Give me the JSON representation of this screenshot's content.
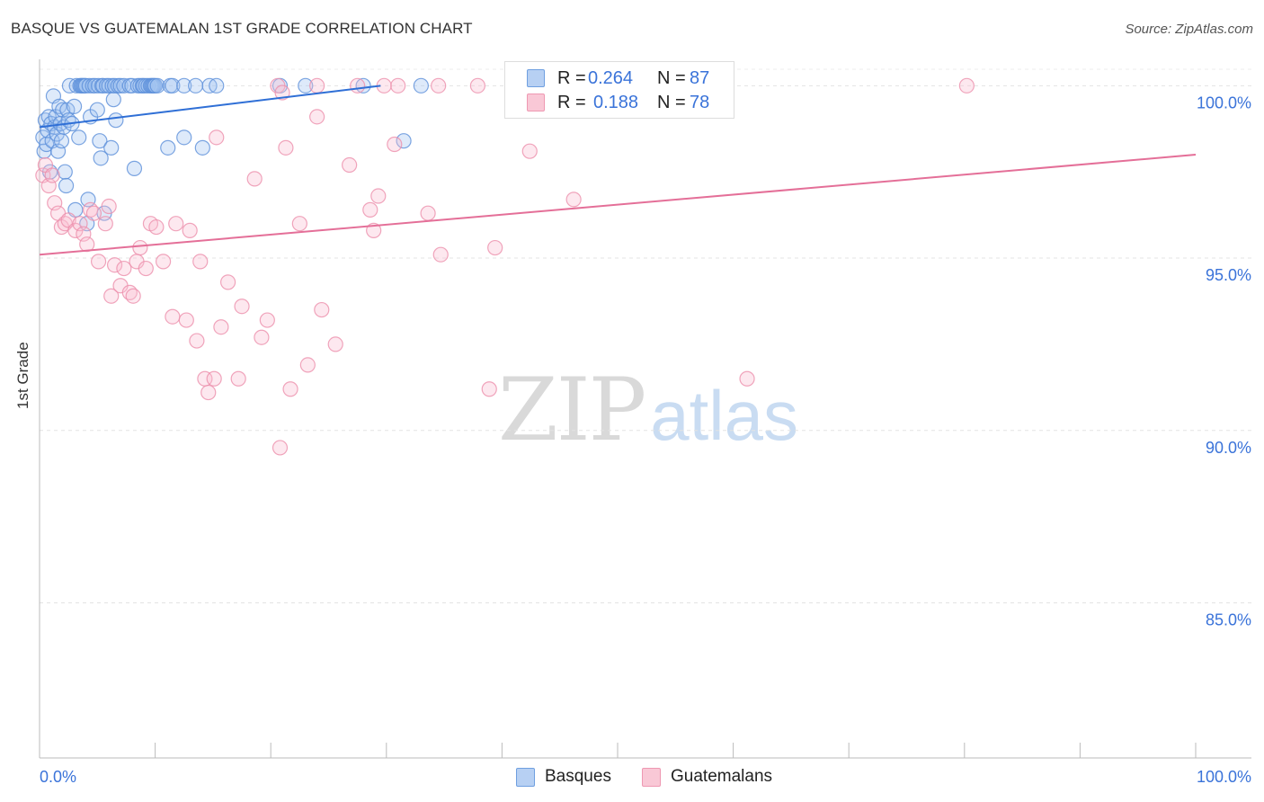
{
  "header": {
    "title": "BASQUE VS GUATEMALAN 1ST GRADE CORRELATION CHART",
    "source": "Source: ZipAtlas.com"
  },
  "watermark": {
    "zip": "ZIP",
    "atlas": "atlas"
  },
  "legend": {
    "rows": [
      {
        "r_label": "R =",
        "r_value": "0.264",
        "n_label": "N =",
        "n_value": "87",
        "fill": "#b7d0f3",
        "stroke": "#6f9fe0"
      },
      {
        "r_label": "R =",
        "r_value": "0.188",
        "n_label": "N =",
        "n_value": "78",
        "fill": "#f9c8d6",
        "stroke": "#ee98b2"
      }
    ]
  },
  "bottom_legend": {
    "series1": "Basques",
    "series2": "Guatemalans"
  },
  "colors": {
    "blue_point": "#5b8fd9",
    "blue_line": "#2f6fd6",
    "pink_point": "#ec8fab",
    "pink_line": "#e46f98",
    "tick_blue": "#3a73d9"
  },
  "chart_data": {
    "type": "scatter",
    "title": "BASQUE VS GUATEMALAN 1ST GRADE CORRELATION CHART",
    "ylabel": "1st Grade",
    "xlabel": "",
    "xlim": [
      0,
      100
    ],
    "ylim": [
      80.5,
      100.4
    ],
    "x_tick_labels": [
      "0.0%",
      "100.0%"
    ],
    "y_ticks": [
      {
        "value": 100,
        "label": "100.0%"
      },
      {
        "value": 95,
        "label": "95.0%"
      },
      {
        "value": 90,
        "label": "90.0%"
      },
      {
        "value": 85,
        "label": "85.0%"
      }
    ],
    "grid": true,
    "legend_position": "top-center",
    "series": [
      {
        "name": "Basques",
        "color": "#5b8fd9",
        "trend": {
          "x": [
            0,
            29.5
          ],
          "y": [
            98.8,
            100.0
          ]
        },
        "points": [
          [
            0.3,
            98.5
          ],
          [
            0.4,
            98.1
          ],
          [
            0.5,
            99.0
          ],
          [
            0.6,
            98.3
          ],
          [
            0.7,
            98.7
          ],
          [
            0.8,
            99.1
          ],
          [
            0.9,
            97.5
          ],
          [
            1.0,
            98.9
          ],
          [
            1.1,
            98.4
          ],
          [
            1.2,
            99.7
          ],
          [
            1.3,
            98.8
          ],
          [
            1.4,
            99.1
          ],
          [
            1.5,
            98.6
          ],
          [
            1.6,
            98.1
          ],
          [
            1.7,
            99.4
          ],
          [
            1.8,
            98.9
          ],
          [
            1.9,
            98.4
          ],
          [
            2.0,
            99.3
          ],
          [
            2.1,
            98.8
          ],
          [
            2.2,
            97.5
          ],
          [
            2.3,
            97.1
          ],
          [
            2.4,
            99.3
          ],
          [
            2.5,
            99.0
          ],
          [
            2.6,
            100.0
          ],
          [
            2.8,
            98.9
          ],
          [
            3.0,
            99.4
          ],
          [
            3.1,
            96.4
          ],
          [
            3.2,
            100.0
          ],
          [
            3.4,
            98.5
          ],
          [
            3.5,
            100.0
          ],
          [
            3.6,
            100.0
          ],
          [
            3.7,
            100.0
          ],
          [
            3.8,
            100.0
          ],
          [
            3.9,
            100.0
          ],
          [
            4.0,
            100.0
          ],
          [
            4.1,
            96.0
          ],
          [
            4.2,
            96.7
          ],
          [
            4.3,
            100.0
          ],
          [
            4.4,
            99.1
          ],
          [
            4.6,
            100.0
          ],
          [
            4.8,
            100.0
          ],
          [
            5.0,
            99.3
          ],
          [
            5.1,
            100.0
          ],
          [
            5.2,
            98.4
          ],
          [
            5.3,
            97.9
          ],
          [
            5.4,
            100.0
          ],
          [
            5.5,
            100.0
          ],
          [
            5.6,
            96.3
          ],
          [
            5.8,
            100.0
          ],
          [
            6.0,
            100.0
          ],
          [
            6.2,
            98.2
          ],
          [
            6.3,
            100.0
          ],
          [
            6.4,
            99.6
          ],
          [
            6.5,
            100.0
          ],
          [
            6.6,
            99.0
          ],
          [
            6.8,
            100.0
          ],
          [
            7.0,
            100.0
          ],
          [
            7.3,
            100.0
          ],
          [
            7.8,
            100.0
          ],
          [
            8.0,
            100.0
          ],
          [
            8.2,
            97.6
          ],
          [
            8.5,
            100.0
          ],
          [
            8.7,
            100.0
          ],
          [
            8.9,
            100.0
          ],
          [
            9.0,
            100.0
          ],
          [
            9.2,
            100.0
          ],
          [
            9.4,
            100.0
          ],
          [
            9.6,
            100.0
          ],
          [
            9.7,
            100.0
          ],
          [
            9.8,
            100.0
          ],
          [
            9.9,
            100.0
          ],
          [
            10.0,
            100.0
          ],
          [
            10.2,
            100.0
          ],
          [
            11.1,
            98.2
          ],
          [
            11.3,
            100.0
          ],
          [
            11.5,
            100.0
          ],
          [
            12.5,
            98.5
          ],
          [
            12.5,
            100.0
          ],
          [
            13.5,
            100.0
          ],
          [
            14.1,
            98.2
          ],
          [
            14.7,
            100.0
          ],
          [
            15.3,
            100.0
          ],
          [
            20.8,
            100.0
          ],
          [
            23.0,
            100.0
          ],
          [
            28.0,
            100.0
          ],
          [
            31.5,
            98.4
          ],
          [
            33.0,
            100.0
          ]
        ]
      },
      {
        "name": "Guatemalans",
        "color": "#ec8fab",
        "trend": {
          "x": [
            0,
            100
          ],
          "y": [
            95.1,
            98.0
          ]
        },
        "points": [
          [
            0.3,
            97.4
          ],
          [
            0.5,
            97.7
          ],
          [
            0.8,
            97.1
          ],
          [
            1.1,
            97.4
          ],
          [
            1.3,
            96.6
          ],
          [
            1.6,
            96.3
          ],
          [
            1.9,
            95.9
          ],
          [
            2.2,
            96.0
          ],
          [
            2.5,
            96.1
          ],
          [
            3.1,
            95.8
          ],
          [
            3.5,
            96.0
          ],
          [
            3.8,
            95.7
          ],
          [
            4.1,
            95.4
          ],
          [
            4.4,
            96.4
          ],
          [
            4.7,
            96.3
          ],
          [
            5.1,
            94.9
          ],
          [
            5.7,
            96.0
          ],
          [
            6.0,
            96.5
          ],
          [
            6.2,
            93.9
          ],
          [
            6.5,
            94.8
          ],
          [
            7.0,
            94.2
          ],
          [
            7.3,
            94.7
          ],
          [
            7.8,
            94.0
          ],
          [
            8.1,
            93.9
          ],
          [
            8.4,
            94.9
          ],
          [
            8.7,
            95.3
          ],
          [
            9.2,
            94.7
          ],
          [
            9.6,
            96.0
          ],
          [
            10.1,
            95.9
          ],
          [
            10.7,
            94.9
          ],
          [
            11.5,
            93.3
          ],
          [
            11.8,
            96.0
          ],
          [
            12.7,
            93.2
          ],
          [
            13.0,
            95.8
          ],
          [
            13.6,
            92.6
          ],
          [
            13.9,
            94.9
          ],
          [
            14.3,
            91.5
          ],
          [
            14.6,
            91.1
          ],
          [
            15.1,
            91.5
          ],
          [
            15.3,
            98.5
          ],
          [
            15.7,
            93.0
          ],
          [
            16.3,
            94.3
          ],
          [
            17.2,
            91.5
          ],
          [
            17.5,
            93.6
          ],
          [
            18.6,
            97.3
          ],
          [
            19.2,
            92.7
          ],
          [
            19.7,
            93.2
          ],
          [
            20.8,
            89.5
          ],
          [
            21.3,
            98.2
          ],
          [
            21.7,
            91.2
          ],
          [
            22.5,
            96.0
          ],
          [
            23.2,
            91.9
          ],
          [
            24.0,
            99.1
          ],
          [
            24.4,
            93.5
          ],
          [
            25.6,
            92.5
          ],
          [
            26.8,
            97.7
          ],
          [
            28.6,
            96.4
          ],
          [
            28.9,
            95.8
          ],
          [
            29.3,
            96.8
          ],
          [
            30.7,
            98.3
          ],
          [
            33.6,
            96.3
          ],
          [
            34.7,
            95.1
          ],
          [
            38.9,
            91.2
          ],
          [
            39.4,
            95.3
          ],
          [
            42.4,
            98.1
          ],
          [
            46.2,
            96.7
          ],
          [
            53.6,
            100.0
          ],
          [
            55.4,
            100.0
          ],
          [
            61.2,
            91.5
          ],
          [
            80.2,
            100.0
          ],
          [
            20.6,
            100.0
          ],
          [
            24.0,
            100.0
          ],
          [
            27.5,
            100.0
          ],
          [
            31.0,
            100.0
          ],
          [
            34.5,
            100.0
          ],
          [
            37.9,
            100.0
          ],
          [
            21.0,
            99.8
          ],
          [
            29.8,
            100.0
          ]
        ]
      }
    ]
  }
}
